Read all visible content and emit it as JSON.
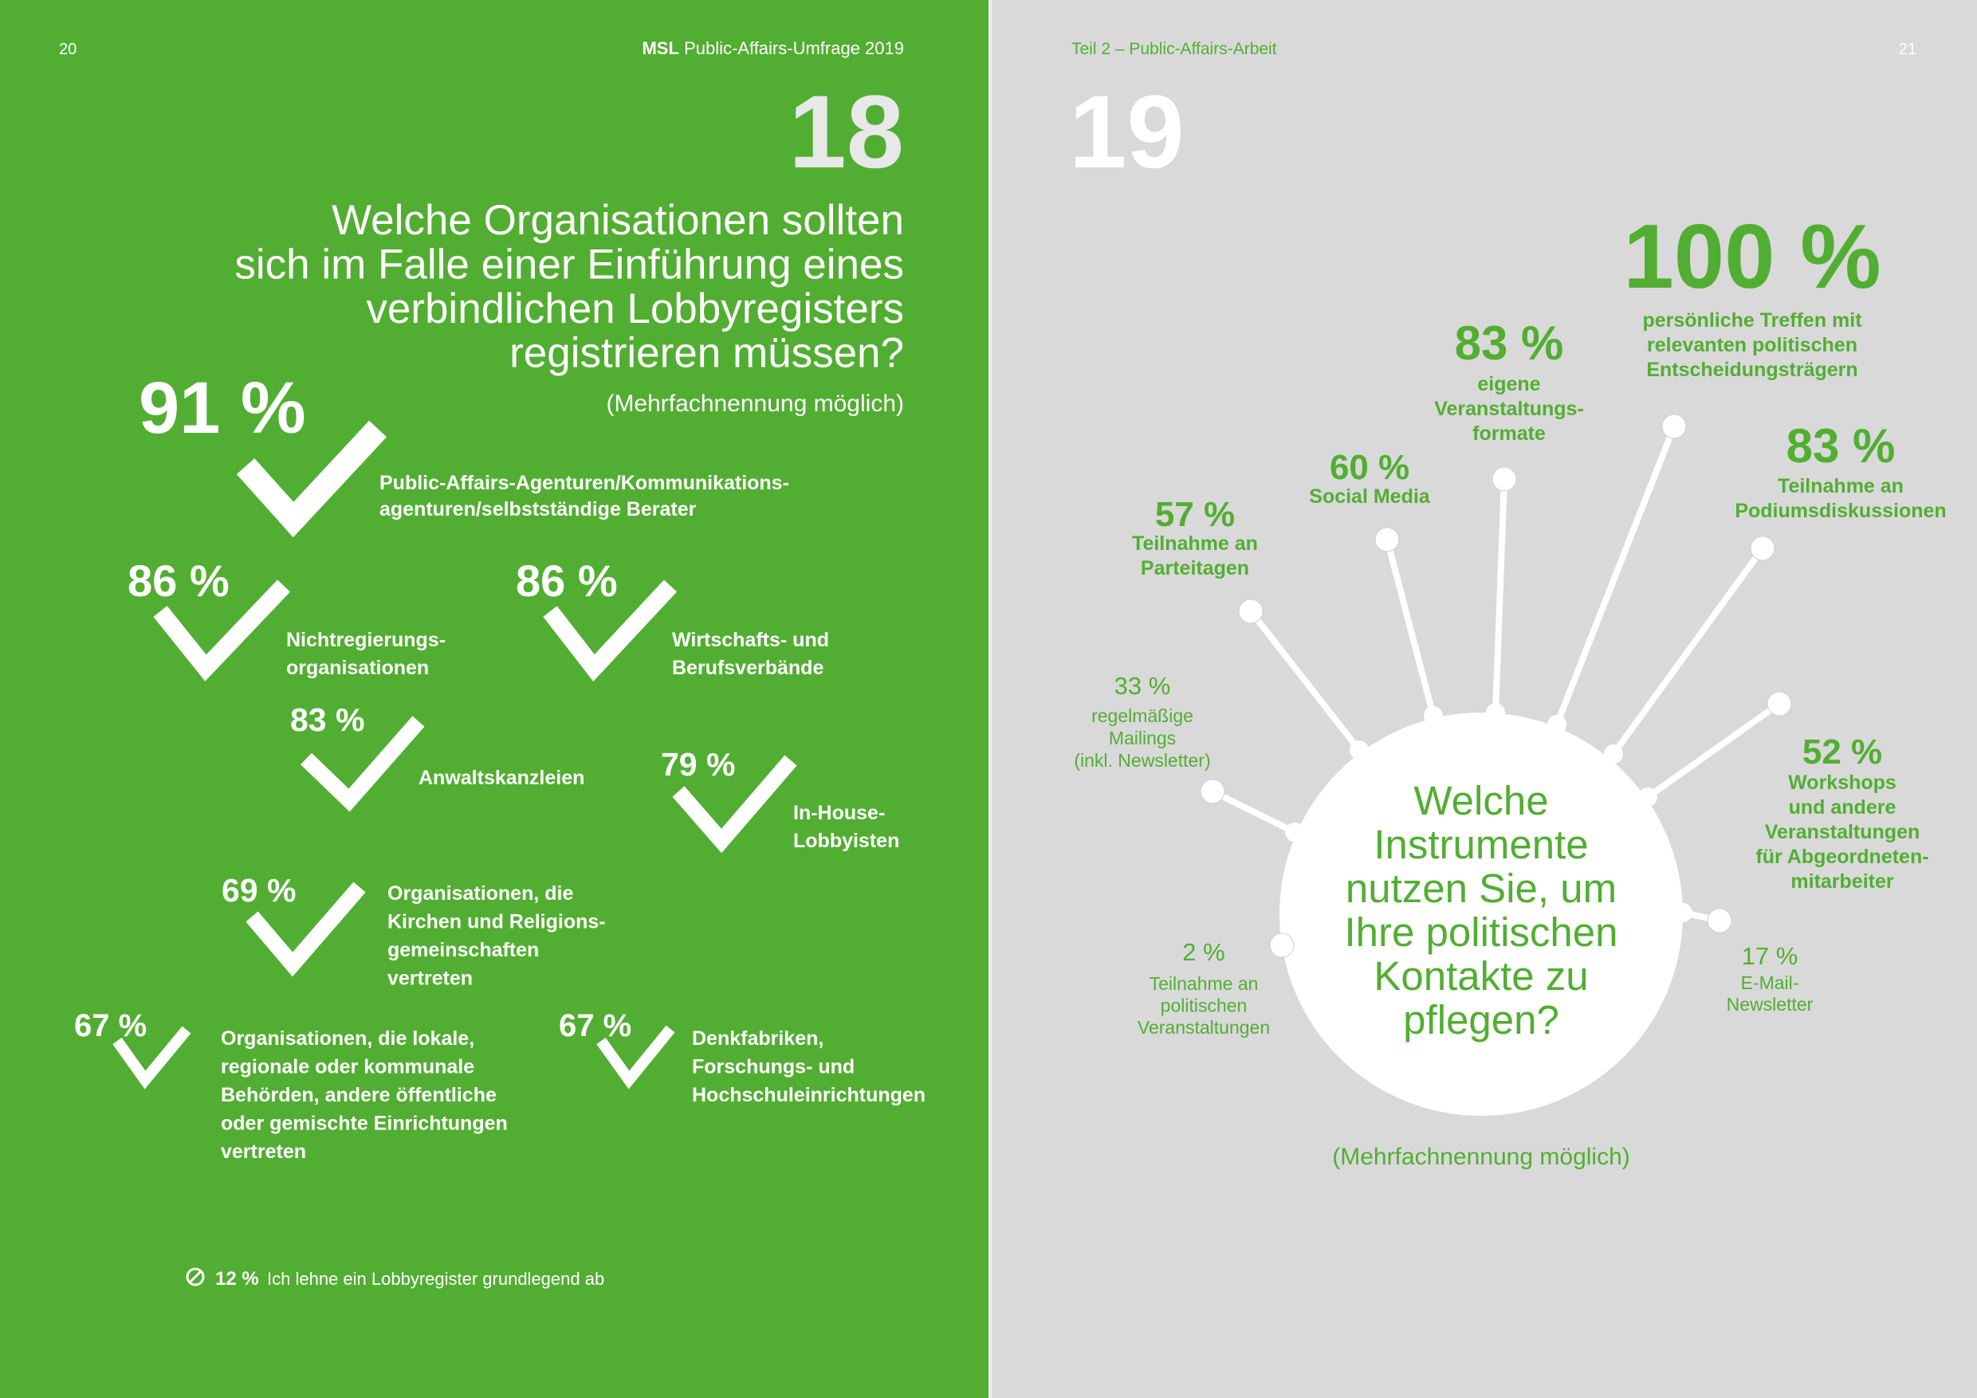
{
  "left_page": {
    "page_number": "20",
    "header": {
      "brand": "MSL",
      "title": "Public-Affairs-Umfrage 2019"
    },
    "question_number": "18",
    "question": [
      "Welche Organisationen sollten",
      "sich im Falle einer Einführung eines",
      "verbindlichen Lobbyregisters",
      "registrieren müssen?"
    ],
    "note": "(Mehrfachnennung möglich)",
    "items": [
      {
        "value": "91 %",
        "label": [
          "Public-Affairs-Agenturen/Kommunikations-",
          "agenturen/selbstständige Berater"
        ]
      },
      {
        "value": "86 %",
        "label": [
          "Nichtregierungs-",
          "organisationen"
        ]
      },
      {
        "value": "86 %",
        "label": [
          "Wirtschafts- und",
          "Berufsverbände"
        ]
      },
      {
        "value": "83 %",
        "label": [
          "Anwaltskanzleien"
        ]
      },
      {
        "value": "79 %",
        "label": [
          "In-House-",
          "Lobbyisten"
        ]
      },
      {
        "value": "69 %",
        "label": [
          "Organisationen, die",
          "Kirchen und Religions-",
          "gemeinschaften",
          "vertreten"
        ]
      },
      {
        "value": "67 %",
        "label": [
          "Organisationen, die lokale,",
          "regionale oder kommunale",
          "Behörden, andere öffentliche",
          "oder gemischte Einrichtungen",
          "vertreten"
        ]
      },
      {
        "value": "67 %",
        "label": [
          "Denkfabriken,",
          "Forschungs- und",
          "Hochschuleinrichtungen"
        ]
      }
    ],
    "footer": {
      "value": "12 %",
      "text": "Ich lehne ein Lobbyregister grundlegend ab"
    }
  },
  "right_page": {
    "page_number": "21",
    "section": "Teil 2 – Public-Affairs-Arbeit",
    "question_number": "19",
    "question": [
      "Welche",
      "Instrumente",
      "nutzen Sie, um",
      "Ihre politischen",
      "Kontakte zu",
      "pflegen?"
    ],
    "note": "(Mehrfachnennung möglich)",
    "items": [
      {
        "value": "100 %",
        "label": [
          "persönliche Treffen mit",
          "relevanten politischen",
          "Entscheidungsträgern"
        ]
      },
      {
        "value": "83 %",
        "label": [
          "eigene",
          "Veranstaltungs-",
          "formate"
        ]
      },
      {
        "value": "60 %",
        "label": [
          "Social Media"
        ]
      },
      {
        "value": "57 %",
        "label": [
          "Teilnahme an",
          "Parteitagen"
        ]
      },
      {
        "value": "83 %",
        "label": [
          "Teilnahme an",
          "Podiumsdiskussionen"
        ]
      },
      {
        "value": "33 %",
        "label": [
          "regelmäßige",
          "Mailings",
          "(inkl. Newsletter)"
        ]
      },
      {
        "value": "52 %",
        "label": [
          "Workshops",
          "und andere",
          "Veranstaltungen",
          "für Abgeordneten-",
          "mitarbeiter"
        ]
      },
      {
        "value": "2 %",
        "label": [
          "Teilnahme an",
          "politischen",
          "Veranstaltungen"
        ]
      },
      {
        "value": "17 %",
        "label": [
          "E-Mail-",
          "Newsletter"
        ]
      }
    ]
  }
}
